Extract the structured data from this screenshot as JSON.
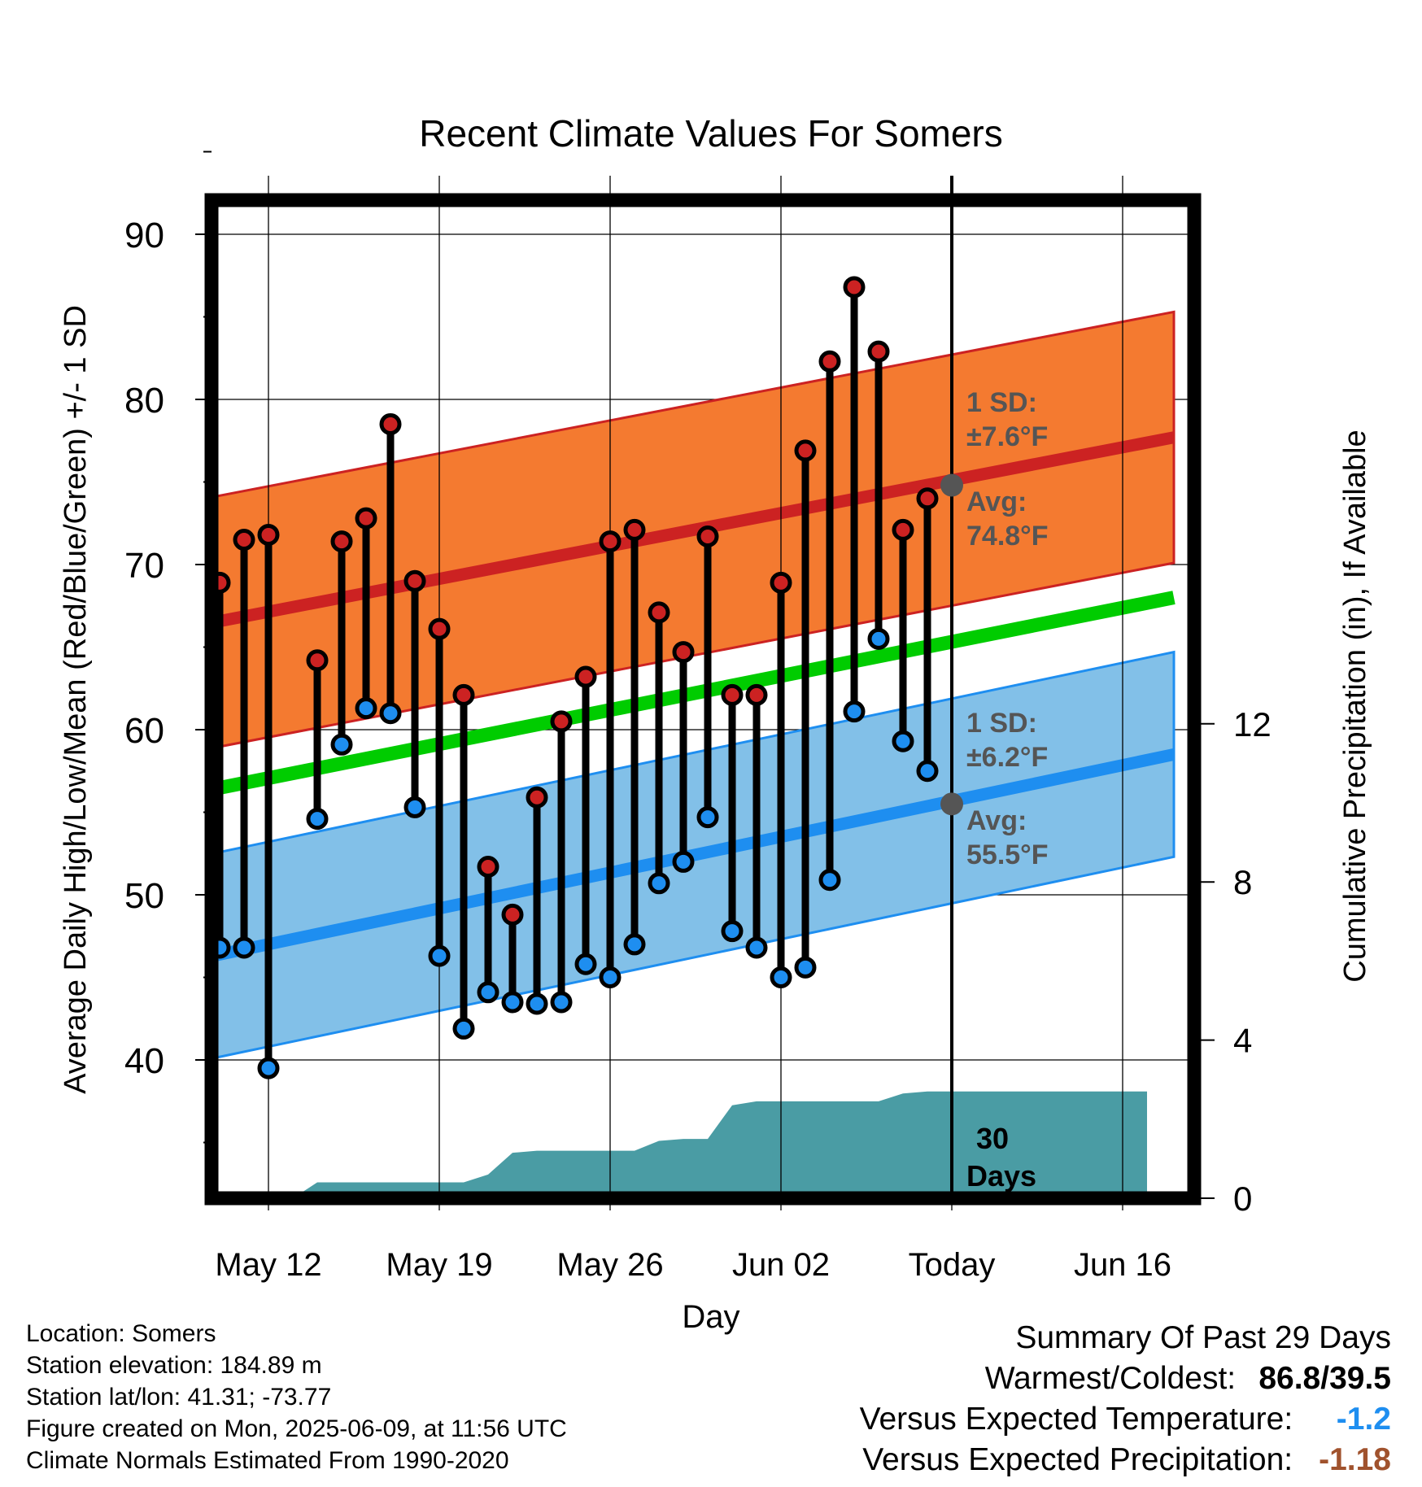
{
  "title": "Recent Climate Values For Somers",
  "chart_data": {
    "type": "line",
    "title": "Recent Climate Values For Somers",
    "xlabel": "Day",
    "ylabel": "Average Daily High/Low/Mean (Red/Blue/Green) +/- 1 SD",
    "y2label": "Cumulative Precipitation (in), If Available",
    "ylim": [
      31.5,
      93
    ],
    "y2lim": [
      0,
      20.93
    ],
    "yticks": [
      "40",
      "50",
      "60",
      "70",
      "80",
      "90"
    ],
    "y2ticks": [
      "0",
      "4",
      "8",
      "12"
    ],
    "xticks": [
      "May 12",
      "May 19",
      "May 26",
      "Jun 02",
      "Today",
      "Jun 16"
    ],
    "x_start_date": "2025-05-10",
    "today_date": "2025-06-09",
    "grid": true,
    "highs": [
      68.9,
      71.5,
      71.8,
      null,
      64.2,
      71.4,
      72.8,
      78.5,
      69.0,
      66.1,
      62.1,
      51.7,
      48.8,
      55.9,
      60.5,
      63.2,
      71.4,
      72.1,
      67.1,
      64.7,
      71.7,
      62.1,
      62.1,
      68.9,
      76.9,
      82.3,
      86.8,
      82.9,
      72.1,
      74.0
    ],
    "lows": [
      46.8,
      46.8,
      39.5,
      null,
      54.6,
      59.1,
      61.3,
      61.0,
      55.3,
      46.3,
      41.9,
      44.1,
      43.5,
      43.4,
      43.5,
      45.8,
      45.0,
      47.0,
      50.7,
      52.0,
      54.7,
      47.8,
      46.8,
      45.0,
      45.6,
      50.9,
      61.1,
      65.5,
      59.3,
      57.5
    ],
    "normal_high": {
      "start": 66.4,
      "end": 77.7,
      "today": 74.8,
      "sd": 7.6
    },
    "normal_low": {
      "start": 46.2,
      "end": 58.5,
      "today": 55.5,
      "sd": 6.2
    },
    "normal_mean": {
      "start": 56.3,
      "end": 68.0
    },
    "precip_cumulative_x": [
      0,
      3,
      4,
      10,
      11,
      12,
      13,
      14,
      15,
      16,
      17,
      18,
      19,
      20,
      21,
      22,
      23,
      24,
      25,
      26,
      27,
      28,
      29,
      30,
      38
    ],
    "precip_cumulative_y": [
      0,
      0,
      0.4,
      0.4,
      0.6,
      1.15,
      1.2,
      1.2,
      1.2,
      1.2,
      1.2,
      1.45,
      1.5,
      1.5,
      2.35,
      2.45,
      2.45,
      2.45,
      2.45,
      2.45,
      2.45,
      2.65,
      2.7,
      2.7,
      2.7
    ],
    "colors": {
      "high_band": "#f47a30",
      "high_line": "#cc2222",
      "low_band": "#82c0e8",
      "low_line": "#1e8ef0",
      "mean_line": "#00cc00",
      "precip": "#4a9ca4",
      "high_dot": "#cc2222",
      "low_dot": "#1e8ef0"
    },
    "annotations": {
      "high_sd_label": "1 SD:",
      "high_sd_value": "±7.6°F",
      "high_avg_label": "Avg:",
      "high_avg_value": "74.8°F",
      "low_sd_label": "1 SD:",
      "low_sd_value": "±6.2°F",
      "low_avg_label": "Avg:",
      "low_avg_value": "55.5°F",
      "days_number": "30",
      "days_label": "Days"
    }
  },
  "info": {
    "location": "Location: Somers",
    "elevation": "Station elevation: 184.89 m",
    "latlon": "Station lat/lon: 41.31; -73.77",
    "created": "Figure created on Mon, 2025-06-09, at 11:56 UTC",
    "normals": "Climate Normals Estimated From 1990-2020"
  },
  "summary": {
    "heading": "Summary Of Past 29 Days",
    "warm_cold_label": "Warmest/Coldest:",
    "warm_cold_value": "86.8/39.5",
    "temp_label": "Versus Expected Temperature:",
    "temp_value": "-1.2",
    "temp_color": "#1e8ef0",
    "precip_label": "Versus Expected Precipitation:",
    "precip_value": "-1.18",
    "precip_color": "#a0522d"
  }
}
